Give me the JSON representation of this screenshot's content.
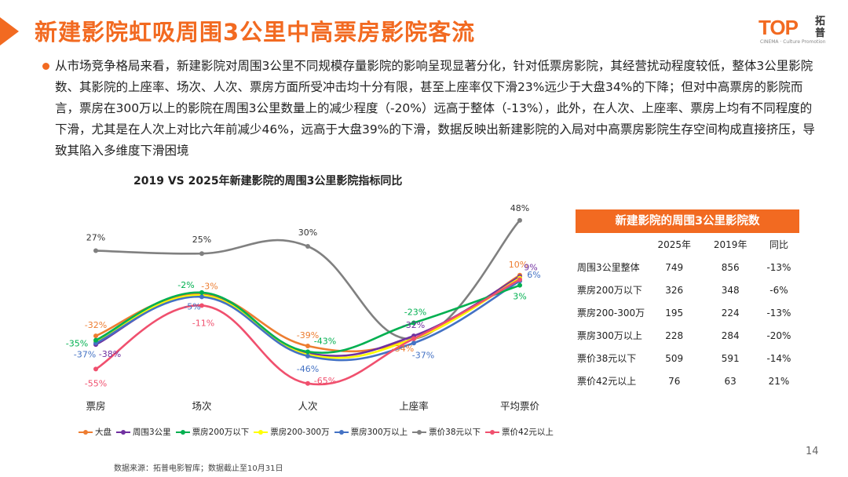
{
  "slide": {
    "title": "新建影院虹吸周围3公里中高票房影院客流",
    "page_number": "14",
    "source": "数据来源：拓普电影智库；数据截止至10月31日",
    "accent_color": "#f26a21"
  },
  "logo": {
    "main": "TOP",
    "sub": "拓普",
    "tagline": "CINEMA · Culture Promotion"
  },
  "bullet": {
    "text": "从市场竞争格局来看，新建影院对周围3公里不同规模存量影院的影响呈现显著分化，针对低票房影院，其经营扰动程度较低，整体3公里影院数、其影院的上座率、场次、人次、票房方面所受冲击均十分有限，甚至上座率仅下滑23%远少于大盘34%的下降；但对中高票房的影院而言，票房在300万以上的影院在周围3公里数量上的减少程度（-20%）远高于整体（-13%），此外，在人次、上座率、票房上均有不同程度的下滑，尤其是在人次上对比六年前减少46%，远高于大盘39%的下滑，数据反映出新建影院的入局对中高票房影院生存空间构成直接挤压，导致其陷入多维度下滑困境"
  },
  "chart_data": {
    "type": "line",
    "title": "2019 VS 2025年新建影院的周围3公里影院指标同比",
    "categories": [
      "票房",
      "场次",
      "人次",
      "上座率",
      "平均票价"
    ],
    "ylim": [
      -70,
      55
    ],
    "grid": false,
    "legend_position": "bottom",
    "series": [
      {
        "name": "大盘",
        "color": "#ed7d31",
        "values": [
          -32,
          -3,
          -39,
          -34,
          10
        ],
        "labels": [
          "-32%",
          "-3%",
          "-39%",
          "-34%",
          "10%"
        ]
      },
      {
        "name": "周围3公里",
        "color": "#7030a0",
        "values": [
          -38,
          -4,
          -44,
          -32,
          9
        ],
        "labels": [
          "-38%",
          "",
          "",
          "-32%",
          "9%"
        ]
      },
      {
        "name": "票房200万以下",
        "color": "#00b050",
        "values": [
          -35,
          -2,
          -43,
          -23,
          3
        ],
        "labels": [
          "-35%",
          "-2%",
          "-43%",
          "-23%",
          "3%"
        ]
      },
      {
        "name": "票房200-300万",
        "color": "#ffff00",
        "values": [
          -36,
          -4,
          -45,
          -34,
          8
        ],
        "labels": [
          "",
          "",
          "",
          "",
          ""
        ]
      },
      {
        "name": "票房300万以上",
        "color": "#4472c4",
        "values": [
          -37,
          -5,
          -46,
          -37,
          6
        ],
        "labels": [
          "-37%",
          "-5%",
          "-46%",
          "-37%",
          "6%"
        ]
      },
      {
        "name": "票价38元以下",
        "color": "#808080",
        "values": [
          27,
          25,
          30,
          -34,
          48
        ],
        "labels": [
          "27%",
          "25%",
          "30%",
          "",
          "48%"
        ]
      },
      {
        "name": "票价42元以上",
        "color": "#f0506e",
        "values": [
          -55,
          -11,
          -65,
          -34,
          7
        ],
        "labels": [
          "-55%",
          "-11%",
          "-65%",
          "",
          ""
        ]
      }
    ]
  },
  "table": {
    "title": "新建影院的周围3公里影院数",
    "headers": [
      "",
      "2025年",
      "2019年",
      "同比"
    ],
    "rows": [
      [
        "周围3公里整体",
        "749",
        "856",
        "-13%"
      ],
      [
        "票房200万以下",
        "326",
        "348",
        "-6%"
      ],
      [
        "票房200-300万",
        "195",
        "224",
        "-13%"
      ],
      [
        "票房300万以上",
        "228",
        "284",
        "-20%"
      ],
      [
        "票价38元以下",
        "509",
        "591",
        "-14%"
      ],
      [
        "票价42元以上",
        "76",
        "63",
        "21%"
      ]
    ]
  }
}
